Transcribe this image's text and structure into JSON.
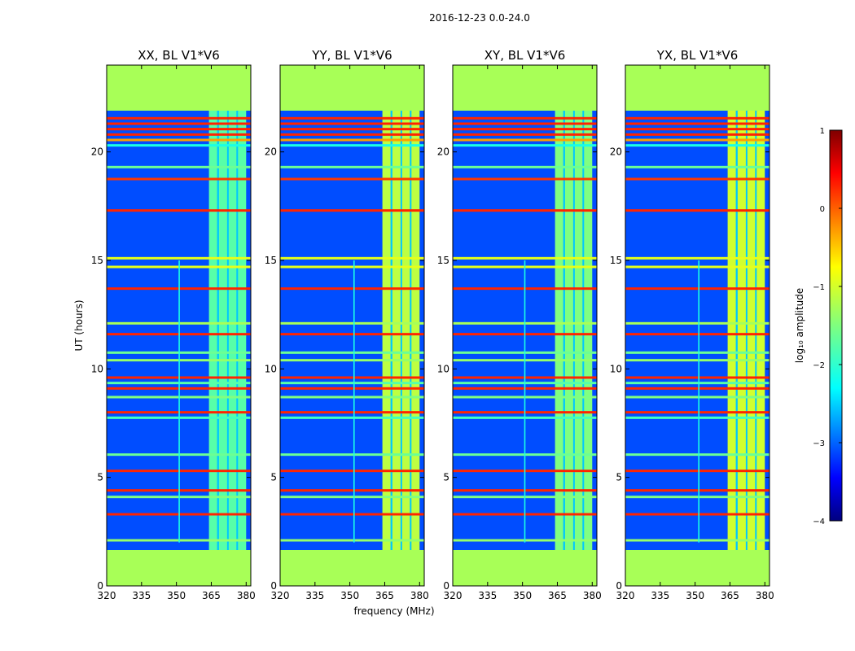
{
  "chart_data": {
    "type": "heatmap",
    "title": "2016-12-23 0.0-24.0",
    "xlabel": "frequency (MHz)",
    "ylabel": "UT (hours)",
    "xlim": [
      320,
      382
    ],
    "ylim": [
      0,
      24
    ],
    "x_ticks": [
      320,
      335,
      350,
      365,
      380
    ],
    "y_ticks": [
      0,
      5,
      10,
      15,
      20
    ],
    "colorbar": {
      "label": "log₁₀ amplitude",
      "range": [
        -4,
        1
      ],
      "ticks": [
        {
          "value": 1,
          "label": "1"
        },
        {
          "value": 0,
          "label": "0"
        },
        {
          "value": -1,
          "label": "−1"
        },
        {
          "value": -2,
          "label": "−2"
        },
        {
          "value": -3,
          "label": "−3"
        },
        {
          "value": -4,
          "label": "−4"
        }
      ],
      "colormap": "jet"
    },
    "background_level": -3.0,
    "flagged_level": -1.3,
    "flagged_time_ranges_hours": [
      [
        0,
        1.65
      ],
      [
        21.9,
        24
      ]
    ],
    "rfi_freq_band_mhz": [
      364,
      380
    ],
    "rfi_freq_gaps_mhz": [
      [
        367.5,
        368.3
      ],
      [
        371.8,
        372.5
      ],
      [
        375.8,
        376.5
      ]
    ],
    "panels": [
      {
        "title": "XX, BL V1*V6",
        "band_level": -1.7,
        "line_freq_mhz": 351.2
      },
      {
        "title": "YY, BL V1*V6",
        "band_level": -1.2,
        "line_freq_mhz": 351.8
      },
      {
        "title": "XY, BL V1*V6",
        "band_level": -1.5,
        "line_freq_mhz": 351.0
      },
      {
        "title": "YX, BL V1*V6",
        "band_level": -1.1,
        "line_freq_mhz": 351.6
      }
    ],
    "horizontal_features": [
      {
        "time_hours": 21.55,
        "level": 0.2
      },
      {
        "time_hours": 21.3,
        "level": 0.2
      },
      {
        "time_hours": 21.05,
        "level": 0.2
      },
      {
        "time_hours": 20.8,
        "level": 0.2
      },
      {
        "time_hours": 20.55,
        "level": -0.4
      },
      {
        "time_hours": 20.3,
        "level": -2.0
      },
      {
        "time_hours": 19.3,
        "level": -1.6
      },
      {
        "time_hours": 18.75,
        "level": 0.1
      },
      {
        "time_hours": 17.3,
        "level": 0.2
      },
      {
        "time_hours": 15.1,
        "level": -1.0
      },
      {
        "time_hours": 14.7,
        "level": -1.0
      },
      {
        "time_hours": 13.7,
        "level": 0.2
      },
      {
        "time_hours": 12.1,
        "level": -1.3
      },
      {
        "time_hours": 11.6,
        "level": 0.2
      },
      {
        "time_hours": 10.75,
        "level": -1.6
      },
      {
        "time_hours": 10.4,
        "level": -1.4
      },
      {
        "time_hours": 9.6,
        "level": 0.2
      },
      {
        "time_hours": 9.35,
        "level": -1.7
      },
      {
        "time_hours": 9.1,
        "level": 0.2
      },
      {
        "time_hours": 8.7,
        "level": -1.5
      },
      {
        "time_hours": 8.0,
        "level": 0.2
      },
      {
        "time_hours": 7.75,
        "level": -1.8
      },
      {
        "time_hours": 6.05,
        "level": -1.6
      },
      {
        "time_hours": 5.3,
        "level": 0.2
      },
      {
        "time_hours": 4.4,
        "level": 0.2
      },
      {
        "time_hours": 4.1,
        "level": -1.5
      },
      {
        "time_hours": 3.3,
        "level": 0.2
      },
      {
        "time_hours": 2.1,
        "level": -1.4
      }
    ]
  }
}
